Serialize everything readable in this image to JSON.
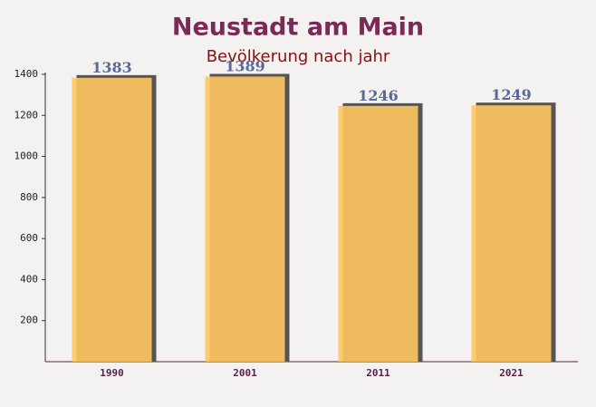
{
  "chart_data": {
    "type": "bar",
    "title": "Neustadt am Main",
    "subtitle": "Bevölkerung nach jahr",
    "categories": [
      "1990",
      "2001",
      "2011",
      "2021"
    ],
    "values": [
      1383,
      1389,
      1246,
      1249
    ],
    "color": "#ffc660",
    "ylim": [
      0,
      1400
    ],
    "yticks": [
      200,
      400,
      600,
      800,
      1000,
      1200,
      1400
    ]
  }
}
